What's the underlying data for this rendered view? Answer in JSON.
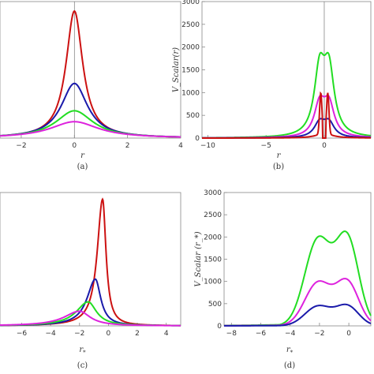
{
  "chart_data": [
    {
      "panel": "a",
      "type": "line",
      "caption": "(a)",
      "xlabel": "r",
      "ylabel": "",
      "xlim": [
        -2.8,
        4
      ],
      "ylim": [
        0,
        1
      ],
      "xticks": [
        -2,
        0,
        2,
        4
      ],
      "yticks": [],
      "vline_at": 0,
      "series": [
        {
          "color": "#cc1111",
          "peak": 0.93,
          "width": 0.38
        },
        {
          "color": "#1a1aaa",
          "peak": 0.4,
          "width": 0.6
        },
        {
          "color": "#22dd22",
          "peak": 0.2,
          "width": 0.85
        },
        {
          "color": "#dd22dd",
          "peak": 0.12,
          "width": 1.1
        }
      ]
    },
    {
      "panel": "b",
      "type": "line",
      "caption": "(b)",
      "xlabel": "r",
      "ylabel": "V_Scalar(r)",
      "xlim": [
        -10.5,
        4
      ],
      "ylim": [
        0,
        3000
      ],
      "xticks": [
        -10,
        -5,
        0
      ],
      "yticks": [
        0,
        500,
        1000,
        1500,
        2000,
        2500,
        3000
      ],
      "vline_at": 0,
      "series": [
        {
          "color": "#22dd22",
          "peak": 2200,
          "dip": 1850
        },
        {
          "color": "#dd22dd",
          "peak": 1100,
          "dip": 950
        },
        {
          "color": "#1a1aaa",
          "peak": 500,
          "dip": 430
        },
        {
          "color": "#cc1111",
          "peak": 900,
          "dip": 0
        }
      ]
    },
    {
      "panel": "c",
      "type": "line",
      "caption": "(c)",
      "xlabel": "r_*",
      "ylabel": "",
      "xlim": [
        -7.5,
        5
      ],
      "ylim": [
        0,
        1
      ],
      "xticks": [
        -6,
        -4,
        -2,
        0,
        2,
        4
      ],
      "yticks": [],
      "series": [
        {
          "color": "#cc1111",
          "peak_x": -0.4,
          "peak": 0.95
        },
        {
          "color": "#1a1aaa",
          "peak_x": -0.9,
          "peak": 0.35
        },
        {
          "color": "#22dd22",
          "peak_x": -1.4,
          "peak": 0.18
        },
        {
          "color": "#dd22dd",
          "peak_x": -2.0,
          "peak": 0.11
        }
      ]
    },
    {
      "panel": "d",
      "type": "line",
      "caption": "(d)",
      "xlabel": "r_*",
      "ylabel": "V_Scalar (r_*)",
      "xlim": [
        -8.5,
        1.5
      ],
      "ylim": [
        0,
        3000
      ],
      "xticks": [
        -8,
        -6,
        -4,
        -2,
        0
      ],
      "yticks": [
        0,
        500,
        1000,
        1500,
        2000,
        2500,
        3000
      ],
      "series": [
        {
          "color": "#22dd22",
          "peak": 2200
        },
        {
          "color": "#dd22dd",
          "peak": 1100
        },
        {
          "color": "#1a1aaa",
          "peak": 500
        }
      ]
    }
  ]
}
